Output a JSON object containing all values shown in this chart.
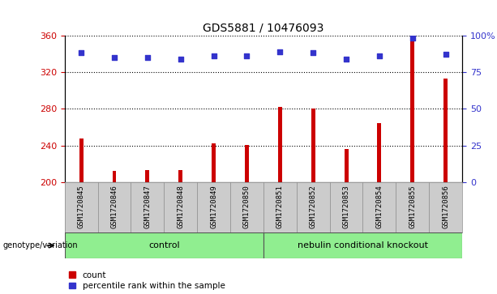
{
  "title": "GDS5881 / 10476093",
  "samples": [
    "GSM1720845",
    "GSM1720846",
    "GSM1720847",
    "GSM1720848",
    "GSM1720849",
    "GSM1720850",
    "GSM1720851",
    "GSM1720852",
    "GSM1720853",
    "GSM1720854",
    "GSM1720855",
    "GSM1720856"
  ],
  "counts": [
    248,
    212,
    213,
    213,
    242,
    241,
    282,
    280,
    236,
    264,
    356,
    313
  ],
  "percentiles": [
    88,
    85,
    85,
    84,
    86,
    86,
    89,
    88,
    84,
    86,
    98,
    87
  ],
  "ylim_left": [
    200,
    360
  ],
  "ylim_right": [
    0,
    100
  ],
  "yticks_left": [
    200,
    240,
    280,
    320,
    360
  ],
  "yticks_right": [
    0,
    25,
    50,
    75,
    100
  ],
  "bar_color": "#cc0000",
  "dot_color": "#3333cc",
  "bar_width": 0.12,
  "groups": [
    {
      "label": "control",
      "indices": [
        0,
        1,
        2,
        3,
        4,
        5
      ]
    },
    {
      "label": "nebulin conditional knockout",
      "indices": [
        6,
        7,
        8,
        9,
        10,
        11
      ]
    }
  ],
  "group_color": "#90ee90",
  "group_label_prefix": "genotype/variation",
  "legend_count_label": "count",
  "legend_pct_label": "percentile rank within the sample",
  "grid_color": "#000000",
  "bg_color": "#ffffff",
  "xticklabel_bg": "#cccccc",
  "tick_label_color_left": "#cc0000",
  "tick_label_color_right": "#3333cc",
  "title_color": "#000000",
  "title_fontsize": 10,
  "dot_size": 18,
  "xtick_fontsize": 6.5,
  "ytick_fontsize": 8
}
